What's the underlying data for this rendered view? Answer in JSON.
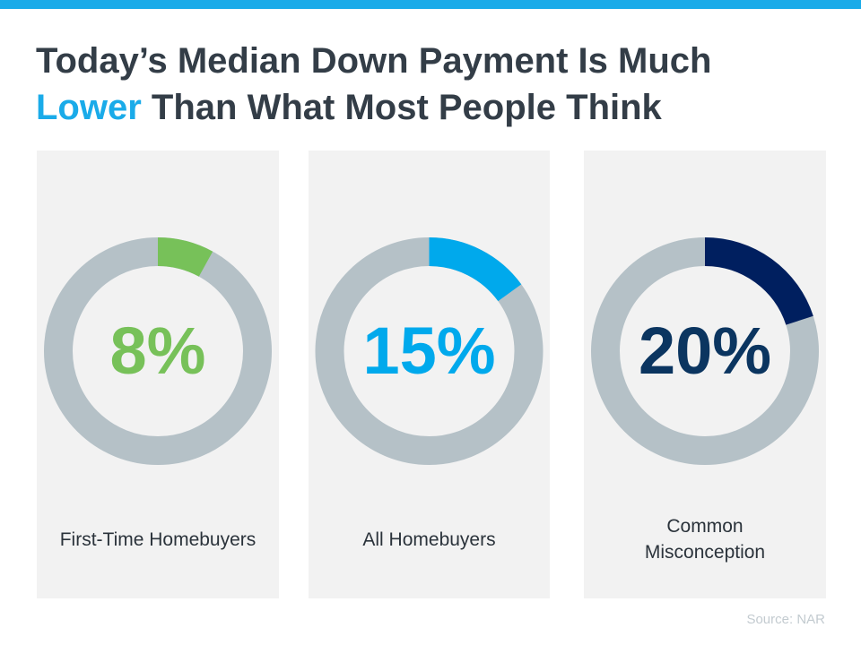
{
  "title": {
    "line1": "Today’s Median Down Payment Is Much",
    "highlight": "Lower",
    "line2_rest": " Than What Most People Think"
  },
  "colors": {
    "accent": "#1aabe9",
    "ring_track": "#b5c1c7",
    "panel_bg": "#f2f2f2"
  },
  "chart_data": {
    "type": "pie",
    "variant": "donut",
    "items": [
      {
        "label": "First-Time Homebuyers",
        "value": 8,
        "display": "8%",
        "color": "#77c159",
        "text_color": "#77c159"
      },
      {
        "label": "All Homebuyers",
        "value": 15,
        "display": "15%",
        "color": "#00a9ec",
        "text_color": "#00a9ec"
      },
      {
        "label": "Common Misconception",
        "value": 20,
        "display": "20%",
        "color": "#001f5f",
        "text_color": "#0b3560"
      }
    ]
  },
  "source": "Source: NAR"
}
